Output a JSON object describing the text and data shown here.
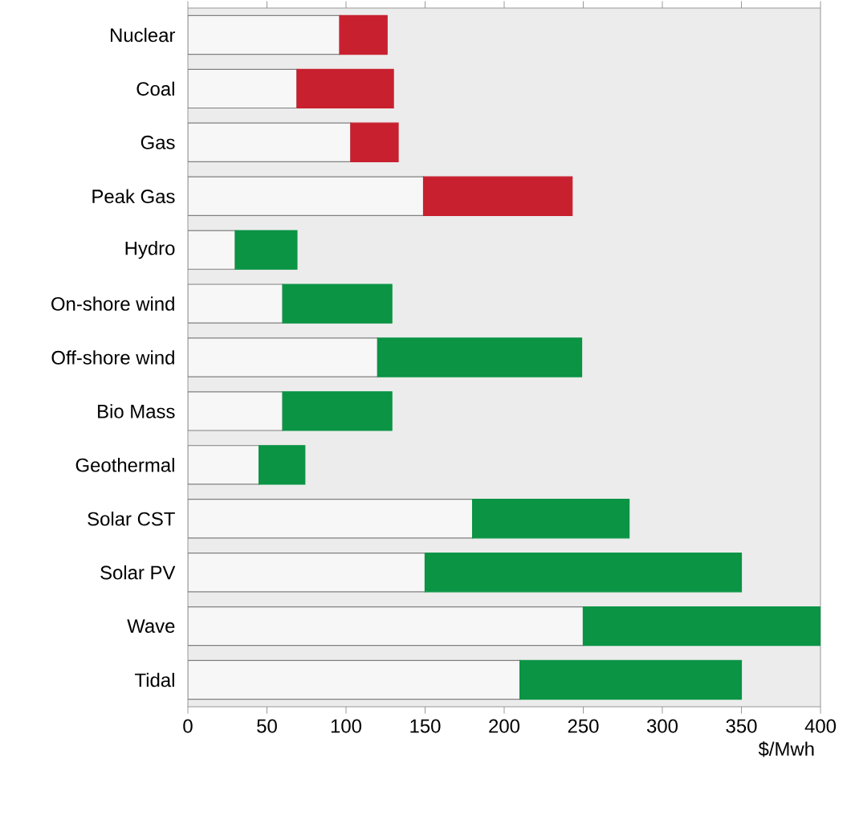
{
  "chart_data": {
    "type": "bar",
    "orientation": "horizontal",
    "stacked": true,
    "xlabel": "$/Mwh",
    "categories": [
      "Nuclear",
      "Coal",
      "Gas",
      "Peak Gas",
      "Hydro",
      "On-shore wind",
      "Off-shore wind",
      "Bio Mass",
      "Geothermal",
      "Solar CST",
      "Solar PV",
      "Wave",
      "Tidal"
    ],
    "series": [
      {
        "color": "#f7f7f7",
        "values": [
          96,
          69,
          103,
          149,
          30,
          60,
          120,
          60,
          45,
          180,
          150,
          250,
          210
        ]
      },
      {
        "colors": [
          "#c8202f",
          "#c8202f",
          "#c8202f",
          "#c8202f",
          "#0a9444",
          "#0a9444",
          "#0a9444",
          "#0a9444",
          "#0a9444",
          "#0a9444",
          "#0a9444",
          "#0a9444",
          "#0a9444"
        ],
        "values": [
          30,
          61,
          30,
          94,
          39,
          69,
          129,
          69,
          29,
          99,
          200,
          150,
          140
        ]
      }
    ],
    "xlim": [
      0,
      400
    ],
    "xticks": [
      0,
      50,
      100,
      150,
      200,
      250,
      300,
      350,
      400
    ],
    "grid": false
  }
}
